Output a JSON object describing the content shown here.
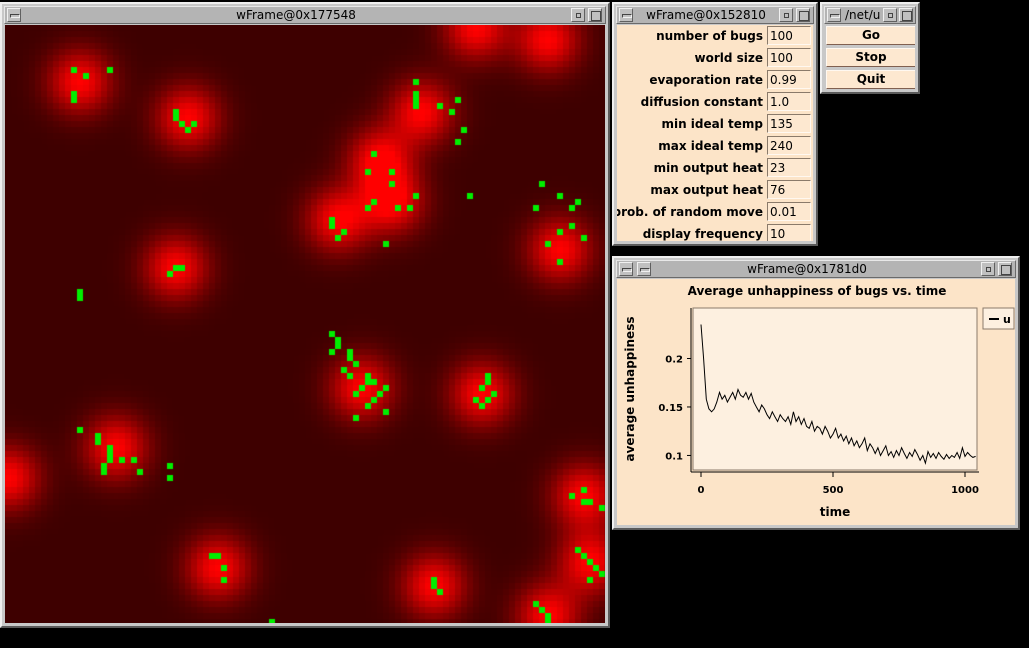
{
  "world_window": {
    "title": "wFrame@0x177548"
  },
  "params_window": {
    "title": "wFrame@0x152810",
    "params": [
      {
        "label": "number of bugs",
        "value": "100"
      },
      {
        "label": "world size",
        "value": "100"
      },
      {
        "label": "evaporation rate",
        "value": "0.99"
      },
      {
        "label": "diffusion constant",
        "value": "1.0"
      },
      {
        "label": "min ideal temp",
        "value": "135"
      },
      {
        "label": "max ideal temp",
        "value": "240"
      },
      {
        "label": "min output heat",
        "value": "23"
      },
      {
        "label": "max output heat",
        "value": "76"
      },
      {
        "label": "prob. of random move",
        "value": "0.01"
      },
      {
        "label": "display frequency",
        "value": "10"
      }
    ]
  },
  "control_window": {
    "title": "/net/u",
    "buttons": {
      "go": "Go",
      "stop": "Stop",
      "quit": "Quit"
    }
  },
  "graph_window": {
    "title": "wFrame@0x1781d0"
  },
  "colors": {
    "heat": "#ff0000",
    "bug": "#00ee00",
    "panel": "#fce4c8"
  },
  "chart_data": {
    "type": "line",
    "title": "Average unhappiness of bugs vs. time",
    "xlabel": "time",
    "ylabel": "average unhappiness",
    "xlim": [
      0,
      1050
    ],
    "ylim": [
      0.085,
      0.25
    ],
    "xticks": [
      0,
      500,
      1000
    ],
    "yticks": [
      0.1,
      0.15,
      0.2
    ],
    "xtick_labels": [
      "0",
      "500",
      "1000"
    ],
    "ytick_labels": [
      "0.1",
      "0.15",
      "0.2"
    ],
    "legend": {
      "position": "right",
      "entries": [
        {
          "name": "u"
        }
      ]
    },
    "grid": false,
    "series": [
      {
        "name": "u",
        "x": [
          0,
          10,
          20,
          30,
          40,
          50,
          60,
          70,
          80,
          90,
          100,
          110,
          120,
          130,
          140,
          150,
          160,
          170,
          180,
          190,
          200,
          210,
          220,
          230,
          240,
          250,
          260,
          270,
          280,
          290,
          300,
          310,
          320,
          330,
          340,
          350,
          360,
          370,
          380,
          390,
          400,
          410,
          420,
          430,
          440,
          450,
          460,
          470,
          480,
          490,
          500,
          510,
          520,
          530,
          540,
          550,
          560,
          570,
          580,
          590,
          600,
          610,
          620,
          630,
          640,
          650,
          660,
          670,
          680,
          690,
          700,
          710,
          720,
          730,
          740,
          750,
          760,
          770,
          780,
          790,
          800,
          810,
          820,
          830,
          840,
          850,
          860,
          870,
          880,
          890,
          900,
          910,
          920,
          930,
          940,
          950,
          960,
          970,
          980,
          990,
          1000,
          1010,
          1020,
          1030,
          1040
        ],
        "y": [
          0.235,
          0.2,
          0.158,
          0.148,
          0.145,
          0.148,
          0.155,
          0.165,
          0.158,
          0.162,
          0.155,
          0.16,
          0.165,
          0.158,
          0.168,
          0.162,
          0.16,
          0.165,
          0.158,
          0.164,
          0.155,
          0.15,
          0.145,
          0.152,
          0.148,
          0.142,
          0.138,
          0.145,
          0.14,
          0.135,
          0.142,
          0.138,
          0.135,
          0.14,
          0.132,
          0.145,
          0.135,
          0.14,
          0.132,
          0.138,
          0.13,
          0.128,
          0.135,
          0.125,
          0.13,
          0.128,
          0.122,
          0.13,
          0.125,
          0.118,
          0.122,
          0.128,
          0.118,
          0.122,
          0.115,
          0.12,
          0.112,
          0.118,
          0.11,
          0.115,
          0.108,
          0.112,
          0.118,
          0.105,
          0.112,
          0.108,
          0.102,
          0.108,
          0.1,
          0.105,
          0.11,
          0.1,
          0.104,
          0.098,
          0.105,
          0.1,
          0.108,
          0.102,
          0.097,
          0.103,
          0.099,
          0.106,
          0.101,
          0.095,
          0.1,
          0.092,
          0.104,
          0.098,
          0.102,
          0.097,
          0.103,
          0.099,
          0.096,
          0.101,
          0.097,
          0.1,
          0.098,
          0.103,
          0.097,
          0.108,
          0.099,
          0.103,
          0.1,
          0.098,
          0.099
        ]
      }
    ]
  }
}
